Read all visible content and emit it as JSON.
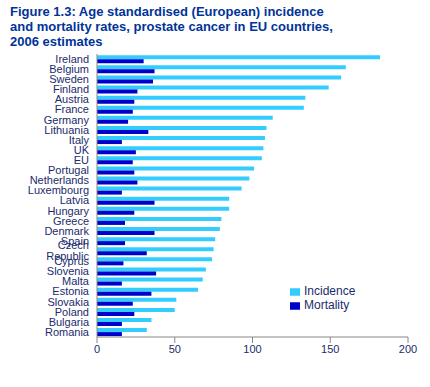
{
  "chart_data": {
    "type": "bar",
    "title": "Figure 1.3: Age standardised (European) incidence and mortality rates, prostate cancer in EU countries, 2006 estimates",
    "orientation": "horizontal",
    "categories": [
      "Ireland",
      "Belgium",
      "Sweden",
      "Finland",
      "Austria",
      "France",
      "Germany",
      "Lithuania",
      "Italy",
      "UK",
      "EU",
      "Portugal",
      "Netherlands",
      "Luxembourg",
      "Latvia",
      "Hungary",
      "Greece",
      "Denmark",
      "Spain",
      "Czech Republic",
      "Cyprus",
      "Slovenia",
      "Malta",
      "Estonia",
      "Slovakia",
      "Poland",
      "Bulgaria",
      "Romania"
    ],
    "series": [
      {
        "name": "Incidence",
        "color": "#33ccff",
        "values": [
          182,
          160,
          157,
          149,
          134,
          133,
          113,
          109,
          108,
          107,
          106,
          101,
          98,
          93,
          85,
          85,
          80,
          79,
          76,
          75,
          74,
          70,
          68,
          65,
          51,
          50,
          35,
          32
        ]
      },
      {
        "name": "Mortality",
        "color": "#0000cc",
        "values": [
          30,
          37,
          36,
          26,
          24,
          23,
          20,
          33,
          16,
          25,
          23,
          24,
          26,
          16,
          37,
          24,
          18,
          37,
          18,
          32,
          17,
          38,
          16,
          35,
          23,
          24,
          16,
          16
        ]
      }
    ],
    "xlim": [
      0,
      200
    ],
    "xticks": [
      0,
      50,
      100,
      150,
      200
    ],
    "grid": false,
    "legend": "lower right"
  }
}
